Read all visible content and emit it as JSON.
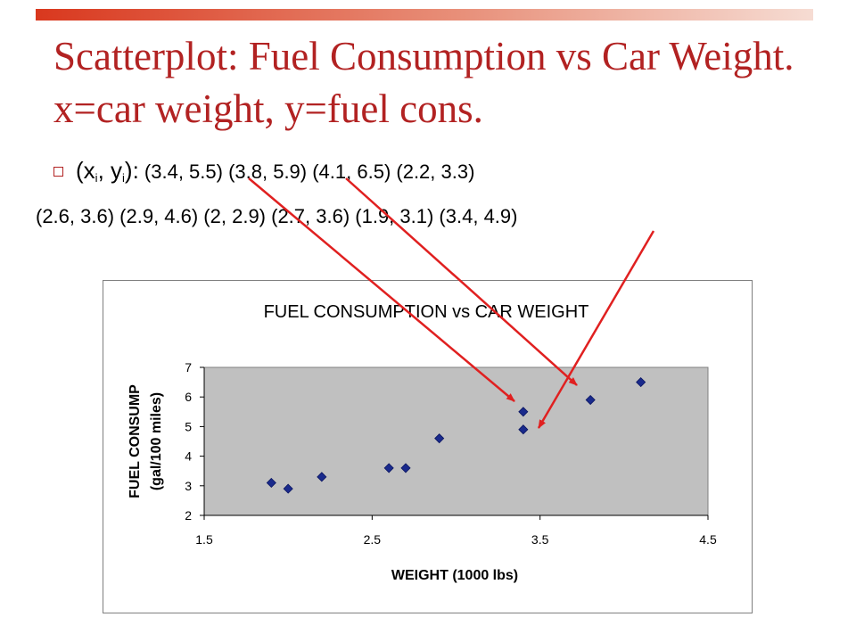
{
  "slide": {
    "title": "Scatterplot: Fuel Consumption vs Car Weight.  x=car weight, y=fuel cons.",
    "bullet_label_open": "(x",
    "bullet_label_sub1": "i",
    "bullet_label_mid": ", y",
    "bullet_label_sub2": "i",
    "bullet_label_close": "):",
    "points_line1": "(3.4, 5.5) (3.8, 5.9) (4.1, 6.5) (2.2, 3.3)",
    "points_line2": "(2.6, 3.6) (2.9, 4.6) (2, 2.9) (2.7, 3.6) (1.9, 3.1) (3.4, 4.9)"
  },
  "colors": {
    "title": "#b22222",
    "accent": "#d94a2e",
    "arrow": "#e02020",
    "marker": "#1a2a8c",
    "plot_area": "#c0c0c0"
  },
  "chart_data": {
    "type": "scatter",
    "title": "FUEL CONSUMPTION vs CAR WEIGHT",
    "xlabel": "WEIGHT (1000 lbs)",
    "ylabel_line1": "FUEL CONSUMP",
    "ylabel_line2": "(gal/100 miles)",
    "xlim": [
      1.5,
      4.5
    ],
    "ylim": [
      2,
      7
    ],
    "x_ticks": [
      "1.5",
      "2.5",
      "3.5",
      "4.5"
    ],
    "y_ticks": [
      "2",
      "3",
      "4",
      "5",
      "6",
      "7"
    ],
    "grid": false,
    "legend": "none",
    "x": [
      3.4,
      3.8,
      4.1,
      2.2,
      2.6,
      2.9,
      2.0,
      2.7,
      1.9,
      3.4
    ],
    "y": [
      5.5,
      5.9,
      6.5,
      3.3,
      3.6,
      4.6,
      2.9,
      3.6,
      3.1,
      4.9
    ]
  }
}
